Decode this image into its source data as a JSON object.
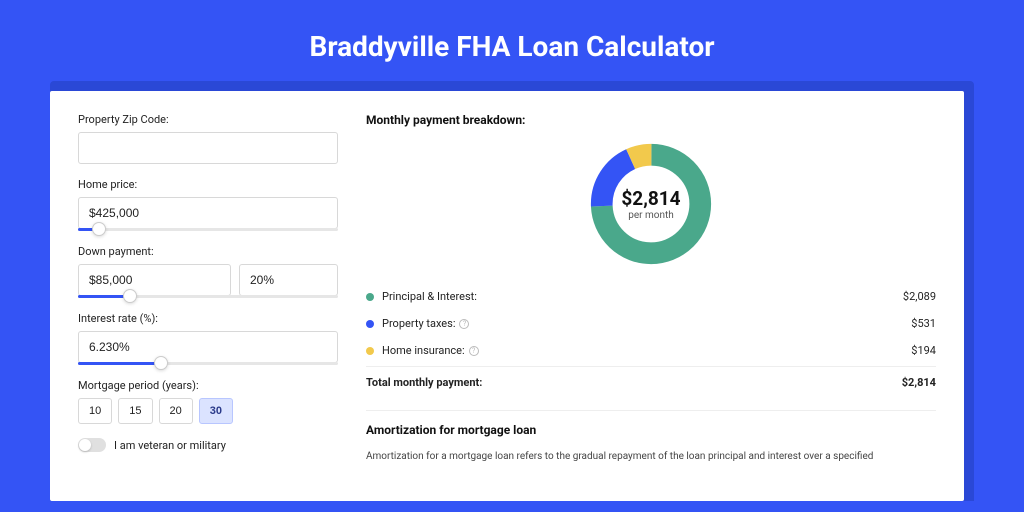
{
  "header": {
    "title": "Braddyville FHA Loan Calculator"
  },
  "colors": {
    "page_bg": "#3454f5",
    "principal": "#4aa88b",
    "taxes": "#3454f5",
    "insurance": "#f2c94c"
  },
  "form": {
    "zip": {
      "label": "Property Zip Code:",
      "value": ""
    },
    "price": {
      "label": "Home price:",
      "value": "$425,000",
      "slider_pct": 8
    },
    "down": {
      "label": "Down payment:",
      "amount": "$85,000",
      "pct": "20%",
      "slider_pct": 20
    },
    "rate": {
      "label": "Interest rate (%):",
      "value": "6.230%",
      "slider_pct": 32
    },
    "period": {
      "label": "Mortgage period (years):",
      "options": [
        "10",
        "15",
        "20",
        "30"
      ],
      "active_index": 3
    },
    "veteran": {
      "label": "I am veteran or military",
      "checked": false
    }
  },
  "breakdown": {
    "title": "Monthly payment breakdown:",
    "donut": {
      "amount": "$2,814",
      "sub": "per month",
      "slices": [
        {
          "color": "#4aa88b",
          "value": 2089
        },
        {
          "color": "#3454f5",
          "value": 531
        },
        {
          "color": "#f2c94c",
          "value": 194
        }
      ],
      "total": 2814
    },
    "items": [
      {
        "label": "Principal & Interest:",
        "value": "$2,089",
        "color": "#4aa88b",
        "info": false
      },
      {
        "label": "Property taxes:",
        "value": "$531",
        "color": "#3454f5",
        "info": true
      },
      {
        "label": "Home insurance:",
        "value": "$194",
        "color": "#f2c94c",
        "info": true
      }
    ],
    "total": {
      "label": "Total monthly payment:",
      "value": "$2,814"
    }
  },
  "amortization": {
    "title": "Amortization for mortgage loan",
    "body": "Amortization for a mortgage loan refers to the gradual repayment of the loan principal and interest over a specified"
  }
}
